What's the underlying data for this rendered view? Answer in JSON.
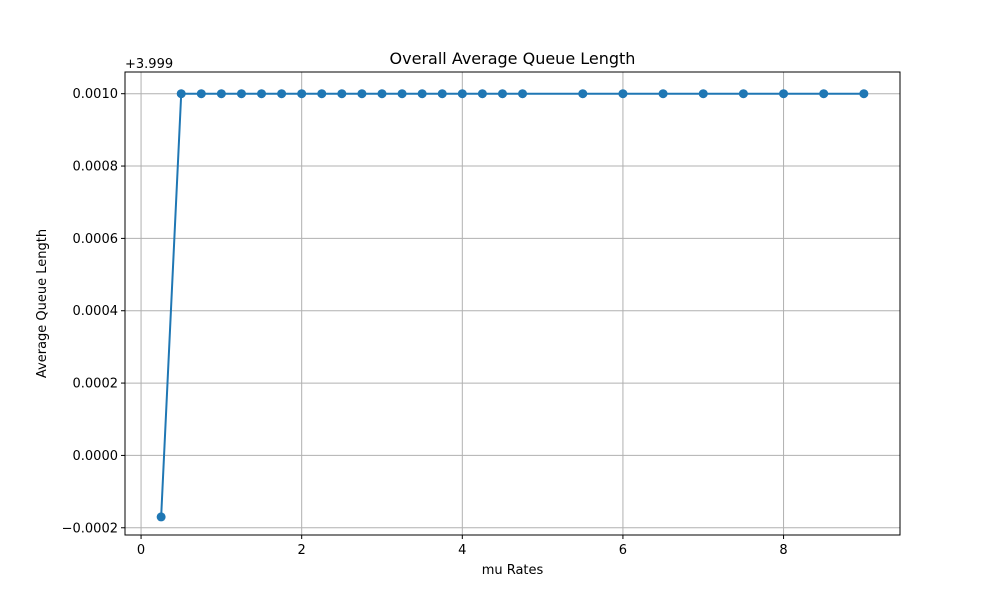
{
  "chart_data": {
    "type": "line",
    "title": "Overall Average Queue Length",
    "xlabel": "mu Rates",
    "ylabel": "Average Queue Length",
    "y_offset_label": "+3.999",
    "y_offset": 3.999,
    "xlim": [
      -0.2,
      9.45
    ],
    "ylim": [
      -0.00022,
      0.00106
    ],
    "x_ticks": [
      0,
      2,
      4,
      6,
      8
    ],
    "x_tick_labels": [
      "0",
      "2",
      "4",
      "6",
      "8"
    ],
    "y_ticks": [
      -0.0002,
      0.0,
      0.0002,
      0.0004,
      0.0006,
      0.0008,
      0.001
    ],
    "y_tick_labels": [
      "−0.0002",
      "0.0000",
      "0.0002",
      "0.0004",
      "0.0006",
      "0.0008",
      "0.0010"
    ],
    "grid": true,
    "series": [
      {
        "color": "#1f77b4",
        "marker": "circle",
        "x": [
          0.25,
          0.5,
          0.75,
          1.0,
          1.25,
          1.5,
          1.75,
          2.0,
          2.25,
          2.5,
          2.75,
          3.0,
          3.25,
          3.5,
          3.75,
          4.0,
          4.25,
          4.5,
          4.75,
          5.5,
          6.0,
          6.5,
          7.0,
          7.5,
          8.0,
          8.5,
          9.0
        ],
        "y": [
          -0.00017,
          0.001,
          0.001,
          0.001,
          0.001,
          0.001,
          0.001,
          0.001,
          0.001,
          0.001,
          0.001,
          0.001,
          0.001,
          0.001,
          0.001,
          0.001,
          0.001,
          0.001,
          0.001,
          0.001,
          0.001,
          0.001,
          0.001,
          0.001,
          0.001,
          0.001,
          0.001
        ]
      }
    ]
  }
}
